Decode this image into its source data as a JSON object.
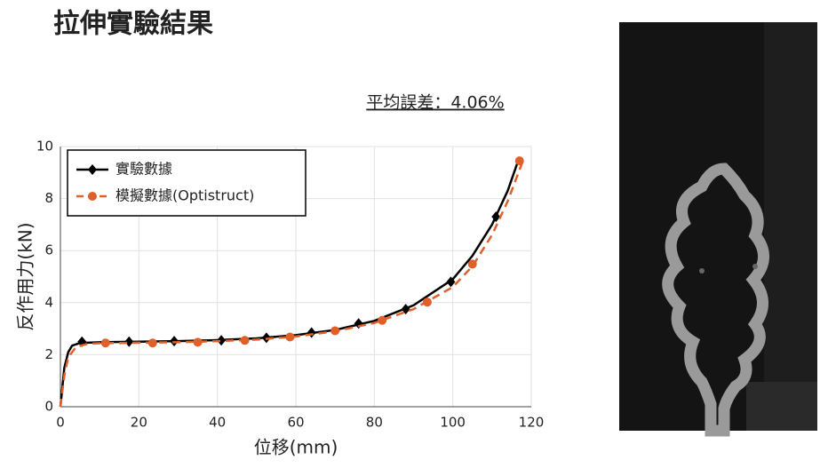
{
  "chart_data": {
    "type": "line",
    "title": "拉伸實驗結果",
    "annotation": "平均誤差：4.06%",
    "xlabel": "位移(mm)",
    "ylabel": "反作用力(kN)",
    "xlim": [
      0,
      120
    ],
    "xticks": [
      0,
      20,
      40,
      60,
      80,
      100,
      120
    ],
    "ylim": [
      0,
      10
    ],
    "yticks": [
      0,
      2,
      4,
      6,
      8,
      10
    ],
    "grid": true,
    "legend": "upper left",
    "series": [
      {
        "name": "實驗數據",
        "color": "#000000",
        "dash": false,
        "marker": "diamond",
        "x": [
          0,
          1,
          2,
          3,
          5,
          10,
          20,
          30,
          40,
          50,
          60,
          70,
          80,
          90,
          100,
          105,
          110,
          114,
          117
        ],
        "values": [
          0,
          1.5,
          2.1,
          2.35,
          2.45,
          2.48,
          2.5,
          2.52,
          2.56,
          2.63,
          2.75,
          2.95,
          3.3,
          3.9,
          4.9,
          5.8,
          7.0,
          8.3,
          9.6
        ],
        "marker_x": [
          5.5,
          17.5,
          29,
          41,
          52.5,
          64,
          76,
          88,
          99.5,
          111
        ],
        "marker_values": [
          2.5,
          2.5,
          2.52,
          2.55,
          2.65,
          2.85,
          3.2,
          3.75,
          4.8,
          7.3
        ]
      },
      {
        "name": "模擬數據(Optistruct)",
        "color": "#e0602a",
        "dash": true,
        "marker": "circle",
        "x": [
          0,
          1,
          2,
          4,
          7,
          10,
          20,
          30,
          40,
          50,
          60,
          70,
          80,
          90,
          100,
          105,
          110,
          114,
          118
        ],
        "values": [
          0,
          1.2,
          1.9,
          2.3,
          2.42,
          2.44,
          2.46,
          2.48,
          2.52,
          2.58,
          2.7,
          2.9,
          3.22,
          3.75,
          4.6,
          5.4,
          6.6,
          7.9,
          9.5
        ],
        "marker_x": [
          11.5,
          23.5,
          35,
          47,
          58.5,
          70,
          82,
          93.5,
          105,
          117
        ],
        "marker_values": [
          2.45,
          2.45,
          2.48,
          2.55,
          2.68,
          2.92,
          3.32,
          4.02,
          5.48,
          9.45
        ]
      }
    ]
  }
}
